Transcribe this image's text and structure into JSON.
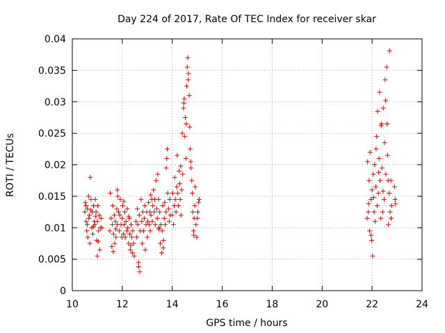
{
  "chart_data": {
    "type": "scatter",
    "title": "Day 224 of 2017, Rate Of TEC Index for receiver skar",
    "xlabel": "GPS time / hours",
    "ylabel": "ROTI / TECUs",
    "xlim": [
      10,
      24
    ],
    "ylim": [
      0,
      0.04
    ],
    "x_ticks": [
      10,
      12,
      14,
      16,
      18,
      20,
      22,
      24
    ],
    "x_tick_labels": [
      "10",
      "12",
      "14",
      "16",
      "18",
      "20",
      "22",
      "24"
    ],
    "y_ticks": [
      0,
      0.005,
      0.01,
      0.015,
      0.02,
      0.025,
      0.03,
      0.035,
      0.04
    ],
    "y_tick_labels": [
      "0",
      "0.005",
      "0.01",
      "0.015",
      "0.02",
      "0.025",
      "0.03",
      "0.035",
      "0.04"
    ],
    "grid": true,
    "marker": "+",
    "color": "#e00000",
    "series": [
      {
        "name": "ROTI",
        "points": [
          [
            10.5,
            0.0125
          ],
          [
            10.52,
            0.014
          ],
          [
            10.55,
            0.011
          ],
          [
            10.58,
            0.0095
          ],
          [
            10.6,
            0.013
          ],
          [
            10.62,
            0.0085
          ],
          [
            10.65,
            0.015
          ],
          [
            10.68,
            0.012
          ],
          [
            10.7,
            0.0075
          ],
          [
            10.72,
            0.018
          ],
          [
            10.75,
            0.0145
          ],
          [
            10.78,
            0.01
          ],
          [
            10.8,
            0.0125
          ],
          [
            10.82,
            0.009
          ],
          [
            10.85,
            0.0135
          ],
          [
            10.88,
            0.011
          ],
          [
            10.9,
            0.0105
          ],
          [
            10.92,
            0.0145
          ],
          [
            10.95,
            0.0125
          ],
          [
            10.98,
            0.008
          ],
          [
            11.0,
            0.011
          ],
          [
            11.02,
            0.0135
          ],
          [
            11.05,
            0.0095
          ],
          [
            11.08,
            0.012
          ],
          [
            11.1,
            0.0065
          ],
          [
            11.12,
            0.01
          ],
          [
            11.15,
            0.0115
          ],
          [
            11.18,
            0.01
          ],
          [
            10.55,
            0.0135
          ],
          [
            10.6,
            0.0105
          ],
          [
            10.66,
            0.0115
          ],
          [
            10.74,
            0.0128
          ],
          [
            10.84,
            0.0102
          ],
          [
            10.94,
            0.0118
          ],
          [
            11.04,
            0.0078
          ],
          [
            11.0,
            0.0055
          ],
          [
            11.5,
            0.0095
          ],
          [
            11.52,
            0.0155
          ],
          [
            11.55,
            0.0115
          ],
          [
            11.58,
            0.007
          ],
          [
            11.6,
            0.0105
          ],
          [
            11.62,
            0.0135
          ],
          [
            11.65,
            0.009
          ],
          [
            11.68,
            0.012
          ],
          [
            11.7,
            0.0075
          ],
          [
            11.72,
            0.011
          ],
          [
            11.75,
            0.0085
          ],
          [
            11.78,
            0.013
          ],
          [
            11.8,
            0.0105
          ],
          [
            11.82,
            0.015
          ],
          [
            11.85,
            0.0125
          ],
          [
            11.88,
            0.0095
          ],
          [
            11.9,
            0.012
          ],
          [
            11.92,
            0.0145
          ],
          [
            11.95,
            0.0105
          ],
          [
            11.98,
            0.0085
          ],
          [
            12.0,
            0.0115
          ],
          [
            12.02,
            0.0135
          ],
          [
            12.05,
            0.009
          ],
          [
            12.08,
            0.0105
          ],
          [
            12.1,
            0.0125
          ],
          [
            12.12,
            0.0085
          ],
          [
            12.15,
            0.011
          ],
          [
            12.18,
            0.0095
          ],
          [
            12.2,
            0.013
          ],
          [
            12.22,
            0.01
          ],
          [
            12.25,
            0.0075
          ],
          [
            12.28,
            0.0115
          ],
          [
            12.3,
            0.009
          ],
          [
            12.32,
            0.0065
          ],
          [
            12.35,
            0.0105
          ],
          [
            12.38,
            0.0085
          ],
          [
            12.4,
            0.006
          ],
          [
            12.42,
            0.0095
          ],
          [
            12.45,
            0.0075
          ],
          [
            12.48,
            0.0055
          ],
          [
            11.8,
            0.016
          ],
          [
            11.64,
            0.0062
          ],
          [
            12.26,
            0.0118
          ],
          [
            12.06,
            0.0142
          ],
          [
            11.74,
            0.0098
          ],
          [
            12.34,
            0.0072
          ],
          [
            12.55,
            0.011
          ],
          [
            12.58,
            0.0085
          ],
          [
            12.6,
            0.013
          ],
          [
            12.62,
            0.0105
          ],
          [
            12.65,
            0.0045
          ],
          [
            12.68,
            0.012
          ],
          [
            12.7,
            0.003
          ],
          [
            12.72,
            0.0095
          ],
          [
            12.75,
            0.0145
          ],
          [
            12.78,
            0.011
          ],
          [
            12.8,
            0.0075
          ],
          [
            12.82,
            0.0125
          ],
          [
            12.85,
            0.0095
          ],
          [
            12.88,
            0.0115
          ],
          [
            12.9,
            0.0135
          ],
          [
            12.92,
            0.0065
          ],
          [
            12.95,
            0.0105
          ],
          [
            12.98,
            0.0125
          ],
          [
            13.0,
            0.0085
          ],
          [
            13.02,
            0.011
          ],
          [
            13.05,
            0.014
          ],
          [
            13.08,
            0.0105
          ],
          [
            13.1,
            0.0125
          ],
          [
            13.12,
            0.0095
          ],
          [
            13.15,
            0.012
          ],
          [
            13.18,
            0.0145
          ],
          [
            13.2,
            0.011
          ],
          [
            13.22,
            0.0135
          ],
          [
            13.25,
            0.016
          ],
          [
            13.28,
            0.0125
          ],
          [
            13.3,
            0.0145
          ],
          [
            13.32,
            0.0105
          ],
          [
            13.35,
            0.0175
          ],
          [
            13.38,
            0.013
          ],
          [
            13.4,
            0.0115
          ],
          [
            13.42,
            0.0185
          ],
          [
            13.45,
            0.0145
          ],
          [
            13.48,
            0.01
          ],
          [
            13.5,
            0.0125
          ],
          [
            13.52,
            0.0075
          ],
          [
            13.55,
            0.0105
          ],
          [
            13.58,
            0.006
          ],
          [
            13.6,
            0.0095
          ],
          [
            13.62,
            0.0135
          ],
          [
            13.65,
            0.008
          ],
          [
            13.68,
            0.0115
          ],
          [
            13.7,
            0.014
          ],
          [
            13.72,
            0.0105
          ],
          [
            13.75,
            0.0125
          ],
          [
            13.78,
            0.021
          ],
          [
            13.8,
            0.0225
          ],
          [
            13.82,
            0.0155
          ],
          [
            13.85,
            0.013
          ],
          [
            13.88,
            0.011
          ],
          [
            13.9,
            0.0145
          ],
          [
            13.92,
            0.012
          ],
          [
            12.66,
            0.0038
          ],
          [
            13.14,
            0.0152
          ],
          [
            13.46,
            0.0098
          ],
          [
            13.64,
            0.0068
          ],
          [
            13.76,
            0.0195
          ],
          [
            14.0,
            0.012
          ],
          [
            14.02,
            0.0155
          ],
          [
            14.05,
            0.0105
          ],
          [
            14.08,
            0.0135
          ],
          [
            14.1,
            0.018
          ],
          [
            14.12,
            0.0145
          ],
          [
            14.15,
            0.0125
          ],
          [
            14.18,
            0.0165
          ],
          [
            14.2,
            0.0215
          ],
          [
            14.22,
            0.0155
          ],
          [
            14.25,
            0.0135
          ],
          [
            14.28,
            0.019
          ],
          [
            14.3,
            0.017
          ],
          [
            14.32,
            0.0145
          ],
          [
            14.35,
            0.012
          ],
          [
            14.38,
            0.016
          ],
          [
            14.4,
            0.025
          ],
          [
            14.42,
            0.0185
          ],
          [
            14.45,
            0.029
          ],
          [
            14.48,
            0.0305
          ],
          [
            14.5,
            0.0245
          ],
          [
            14.52,
            0.0275
          ],
          [
            14.55,
            0.021
          ],
          [
            14.58,
            0.0325
          ],
          [
            14.6,
            0.0355
          ],
          [
            14.62,
            0.037
          ],
          [
            14.65,
            0.0345
          ],
          [
            14.68,
            0.031
          ],
          [
            14.7,
            0.026
          ],
          [
            14.72,
            0.0225
          ],
          [
            14.75,
            0.0195
          ],
          [
            14.78,
            0.0175
          ],
          [
            14.8,
            0.0155
          ],
          [
            14.82,
            0.0125
          ],
          [
            14.85,
            0.0095
          ],
          [
            14.88,
            0.0115
          ],
          [
            14.9,
            0.0135
          ],
          [
            14.92,
            0.0165
          ],
          [
            14.95,
            0.0105
          ],
          [
            14.98,
            0.0085
          ],
          [
            15.0,
            0.0115
          ],
          [
            15.02,
            0.0125
          ],
          [
            15.05,
            0.014
          ],
          [
            15.08,
            0.0145
          ],
          [
            14.34,
            0.0198
          ],
          [
            14.46,
            0.0298
          ],
          [
            14.56,
            0.0265
          ],
          [
            14.64,
            0.0335
          ],
          [
            14.74,
            0.0205
          ],
          [
            14.86,
            0.0088
          ],
          [
            21.8,
            0.0115
          ],
          [
            21.82,
            0.0205
          ],
          [
            21.85,
            0.0125
          ],
          [
            21.88,
            0.0175
          ],
          [
            21.9,
            0.0095
          ],
          [
            21.92,
            0.022
          ],
          [
            21.95,
            0.0145
          ],
          [
            21.98,
            0.008
          ],
          [
            22.0,
            0.016
          ],
          [
            22.02,
            0.0055
          ],
          [
            22.05,
            0.0185
          ],
          [
            22.08,
            0.0125
          ],
          [
            22.1,
            0.02
          ],
          [
            22.12,
            0.011
          ],
          [
            22.15,
            0.0165
          ],
          [
            22.18,
            0.0245
          ],
          [
            22.2,
            0.0135
          ],
          [
            22.22,
            0.0285
          ],
          [
            22.25,
            0.0155
          ],
          [
            22.28,
            0.021
          ],
          [
            22.3,
            0.0315
          ],
          [
            22.32,
            0.0175
          ],
          [
            22.35,
            0.0115
          ],
          [
            22.38,
            0.0265
          ],
          [
            22.4,
            0.0195
          ],
          [
            22.42,
            0.0125
          ],
          [
            22.45,
            0.029
          ],
          [
            22.48,
            0.0145
          ],
          [
            22.5,
            0.0235
          ],
          [
            22.52,
            0.0335
          ],
          [
            22.55,
            0.0185
          ],
          [
            22.58,
            0.0355
          ],
          [
            22.6,
            0.0265
          ],
          [
            22.62,
            0.0215
          ],
          [
            22.65,
            0.0105
          ],
          [
            22.68,
            0.0155
          ],
          [
            22.7,
            0.0381
          ],
          [
            22.72,
            0.0125
          ],
          [
            22.75,
            0.0175
          ],
          [
            22.78,
            0.0135
          ],
          [
            22.9,
            0.0165
          ],
          [
            22.92,
            0.0145
          ],
          [
            22.94,
            0.0138
          ],
          [
            21.86,
            0.0138
          ],
          [
            21.96,
            0.0088
          ],
          [
            22.06,
            0.0148
          ],
          [
            22.16,
            0.0225
          ],
          [
            22.26,
            0.0188
          ],
          [
            22.36,
            0.0262
          ],
          [
            22.44,
            0.0158
          ],
          [
            22.54,
            0.0302
          ],
          [
            22.64,
            0.0175
          ],
          [
            22.76,
            0.0115
          ]
        ]
      }
    ]
  }
}
